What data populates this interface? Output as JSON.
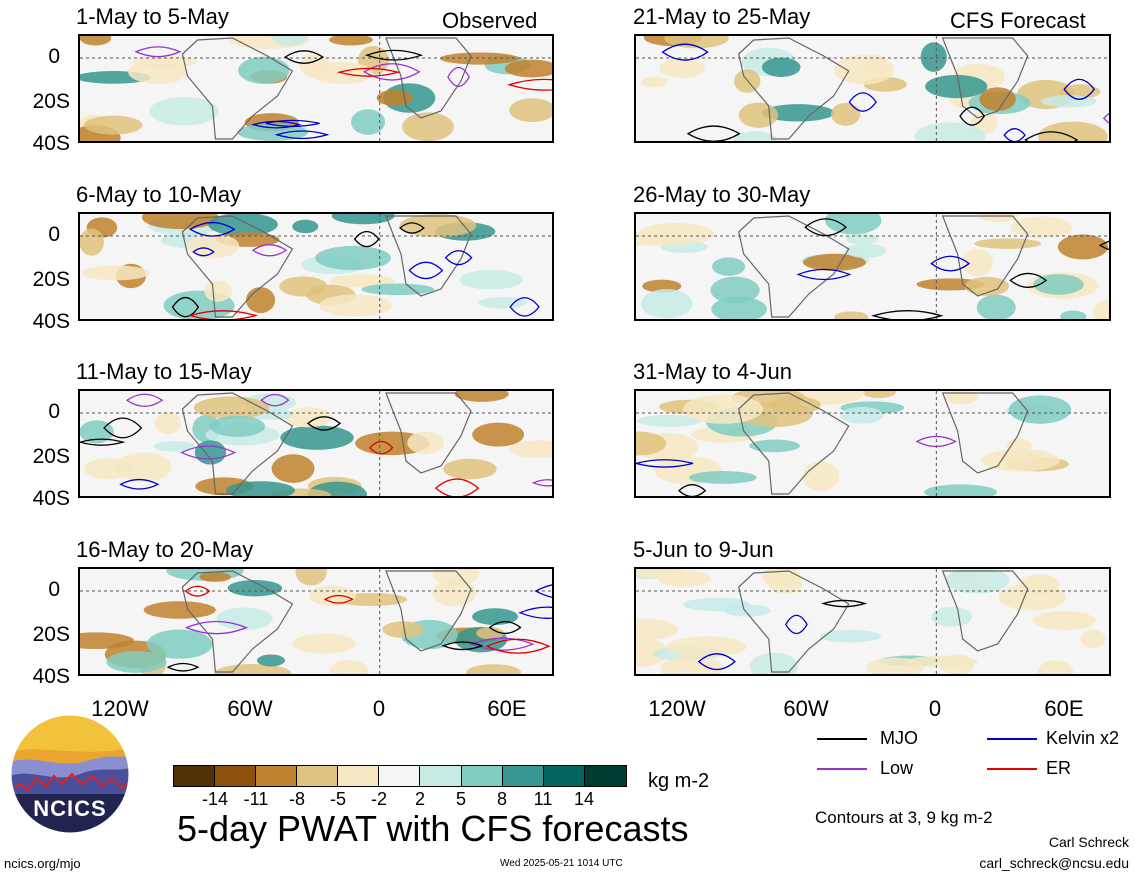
{
  "panels_left": [
    {
      "title": "1-May to 5-May",
      "tag": "Observed"
    },
    {
      "title": "6-May to 10-May",
      "tag": ""
    },
    {
      "title": "11-May to 15-May",
      "tag": ""
    },
    {
      "title": "16-May to 20-May",
      "tag": ""
    }
  ],
  "panels_right": [
    {
      "title": "21-May to 25-May",
      "tag": "CFS Forecast"
    },
    {
      "title": "26-May to 30-May",
      "tag": ""
    },
    {
      "title": "31-May to 4-Jun",
      "tag": ""
    },
    {
      "title": "5-Jun to 9-Jun",
      "tag": ""
    }
  ],
  "y_ticks": [
    "0",
    "20S",
    "40S"
  ],
  "x_ticks": [
    "120W",
    "60W",
    "0",
    "60E"
  ],
  "legend": {
    "mjo": "MJO",
    "kelvin": "Kelvin x2",
    "low": "Low",
    "er": "ER",
    "colors": {
      "mjo": "#000000",
      "kelvin": "#0000cc",
      "low": "#9933cc",
      "er": "#dd0000"
    }
  },
  "colorbar": {
    "labels": [
      "-14",
      "-11",
      "-8",
      "-5",
      "-2",
      "2",
      "5",
      "8",
      "11",
      "14"
    ],
    "colors": [
      "#543005",
      "#8c510a",
      "#bf812d",
      "#dfc27d",
      "#f6e8c3",
      "#f5f5f5",
      "#c7eae5",
      "#80cdc1",
      "#35978f",
      "#01665e",
      "#003c30"
    ],
    "unit": "kg m-2"
  },
  "main_title": "5-day PWAT with CFS forecasts",
  "contours_note": "Contours at 3, 9 kg m-2",
  "logo_text": "NCICS",
  "footer": {
    "left": "ncics.org/mjo",
    "center": "Wed 2025-05-21 1014 UTC",
    "author": "Carl Schreck",
    "email": "carl_schreck@ncsu.edu"
  }
}
